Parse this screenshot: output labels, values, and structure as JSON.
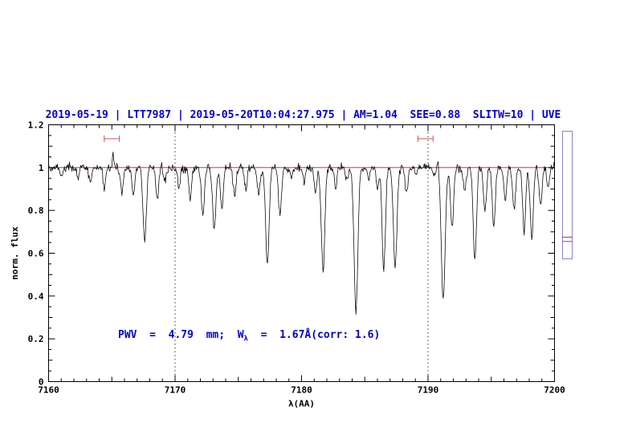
{
  "chart_data": {
    "type": "line",
    "title": "2019-05-19 | LTT7987 | 2019-05-20T10:04:27.975 | AM=1.04  SEE=0.88  SLITW=10 | UVE",
    "title_color": "#0000d0",
    "annotation": {
      "prefix": "PWV  =  4.79  mm;  W",
      "sub": "λ",
      "suffix": "  =  1.67Å(corr: 1.6)",
      "color": "#0000d0"
    },
    "xlabel": "λ(AA)",
    "ylabel": "norm. flux",
    "xlim": [
      7160,
      7200
    ],
    "ylim": [
      0,
      1.2
    ],
    "grid": false,
    "x_ticks": {
      "values": [
        7160,
        7170,
        7180,
        7190,
        7200
      ],
      "labels": [
        "7160",
        "7170",
        "7180",
        "7190",
        "7200"
      ]
    },
    "y_ticks": {
      "values": [
        0,
        0.2,
        0.4,
        0.6,
        0.8,
        1,
        1.2
      ],
      "labels": [
        "0",
        "0.2",
        "0.4",
        "0.6",
        "0.8",
        "1",
        "1.2"
      ]
    },
    "dotted_vlines": [
      7170,
      7190
    ],
    "continuum_line": {
      "level": 1.0,
      "color": "#aa2222"
    },
    "interval_markers": {
      "color": "#cc5555",
      "items": [
        {
          "x1": 7164.4,
          "x2": 7165.6,
          "y": 1.135
        },
        {
          "x1": 7189.2,
          "x2": 7190.4,
          "y": 1.135
        }
      ]
    },
    "side_gauge": {
      "box_color": "#8b85c5",
      "line_color": "#cc3333",
      "red_line_values": [
        0.655,
        0.675
      ]
    },
    "spectrum": {
      "color": "#000000",
      "continuum": 1.0,
      "noise_sigma": 0.01,
      "step": 0.05,
      "seed": 42,
      "absorption_lines": [
        [
          7161.0,
          0.04,
          0.1
        ],
        [
          7162.35,
          0.05,
          0.1
        ],
        [
          7163.3,
          0.07,
          0.1
        ],
        [
          7164.4,
          0.1,
          0.11
        ],
        [
          7165.1,
          -0.06,
          0.05
        ],
        [
          7165.8,
          0.12,
          0.11
        ],
        [
          7166.7,
          0.13,
          0.11
        ],
        [
          7167.6,
          0.35,
          0.13
        ],
        [
          7168.6,
          0.15,
          0.11
        ],
        [
          7169.2,
          0.07,
          0.1
        ],
        [
          7170.3,
          0.1,
          0.1
        ],
        [
          7171.2,
          0.15,
          0.11
        ],
        [
          7172.2,
          0.22,
          0.12
        ],
        [
          7173.1,
          0.29,
          0.13
        ],
        [
          7173.7,
          0.2,
          0.11
        ],
        [
          7174.7,
          0.13,
          0.11
        ],
        [
          7175.6,
          0.1,
          0.1
        ],
        [
          7176.6,
          0.13,
          0.11
        ],
        [
          7177.3,
          0.45,
          0.14
        ],
        [
          7178.3,
          0.22,
          0.12
        ],
        [
          7179.2,
          0.05,
          0.1
        ],
        [
          7180.2,
          0.07,
          0.1
        ],
        [
          7181.1,
          0.12,
          0.1
        ],
        [
          7181.7,
          0.48,
          0.14
        ],
        [
          7182.7,
          0.1,
          0.1
        ],
        [
          7183.6,
          0.07,
          0.1
        ],
        [
          7184.3,
          0.67,
          0.15
        ],
        [
          7185.3,
          0.05,
          0.1
        ],
        [
          7186.0,
          0.1,
          0.1
        ],
        [
          7186.5,
          0.48,
          0.13
        ],
        [
          7187.4,
          0.47,
          0.14
        ],
        [
          7188.3,
          0.12,
          0.11
        ],
        [
          7189.1,
          0.03,
          0.1
        ],
        [
          7190.5,
          0.04,
          0.1
        ],
        [
          7190.8,
          -0.03,
          0.05
        ],
        [
          7191.2,
          0.62,
          0.15
        ],
        [
          7191.9,
          0.28,
          0.12
        ],
        [
          7192.9,
          0.12,
          0.11
        ],
        [
          7193.7,
          0.43,
          0.13
        ],
        [
          7194.5,
          0.2,
          0.12
        ],
        [
          7195.2,
          0.28,
          0.12
        ],
        [
          7196.1,
          0.15,
          0.11
        ],
        [
          7196.8,
          0.2,
          0.12
        ],
        [
          7197.6,
          0.3,
          0.12
        ],
        [
          7198.2,
          0.33,
          0.12
        ],
        [
          7198.9,
          0.18,
          0.11
        ],
        [
          7199.5,
          0.1,
          0.1
        ]
      ]
    }
  }
}
